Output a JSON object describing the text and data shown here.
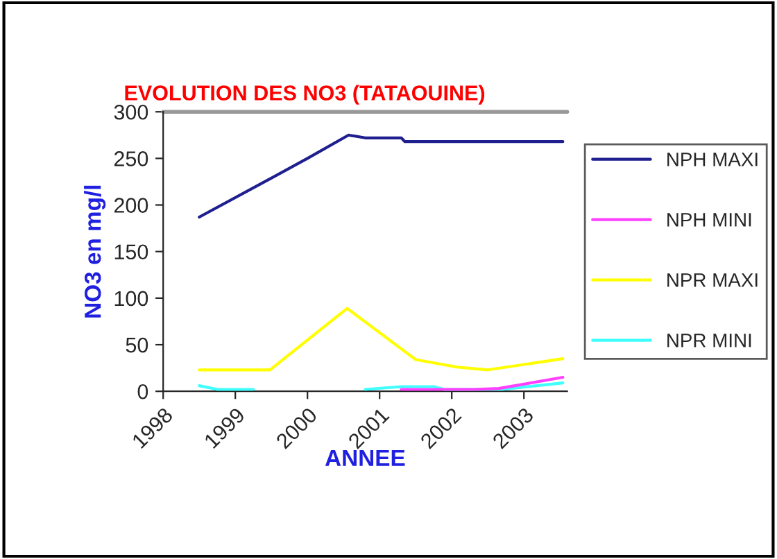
{
  "chart_data": {
    "type": "line",
    "title": "EVOLUTION DES NO3 (TATAOUINE)",
    "xlabel": "ANNEE",
    "ylabel": "NO3 en mg/l",
    "xlim": [
      1998,
      2003.6
    ],
    "xticks": [
      1998,
      1999,
      2000,
      2001,
      2002,
      2003
    ],
    "ylim": [
      0,
      300
    ],
    "yticks": [
      0,
      50,
      100,
      150,
      200,
      250,
      300
    ],
    "grid": false,
    "legend": "right",
    "marker": "none",
    "line_style": "solid",
    "series": [
      {
        "name": "NPH MAXI",
        "color": "#1f1f8f",
        "x": [
          1998.5,
          1999.48,
          2000.0,
          2000.57,
          2000.8,
          2001.3,
          2001.35,
          2003.54
        ],
        "values": [
          187,
          228,
          250,
          275,
          272,
          272,
          268,
          268
        ]
      },
      {
        "name": "NPH MINI",
        "color": "#ff40ff",
        "x": [
          2001.3,
          2001.75,
          2002.3,
          2002.65,
          2003.54
        ],
        "values": [
          2,
          2,
          2,
          3,
          15
        ]
      },
      {
        "name": "NPR MAXI",
        "color": "#ffff00",
        "x": [
          1998.5,
          1999.48,
          2000.55,
          2001.5,
          2002.07,
          2002.5,
          2003.54
        ],
        "values": [
          23,
          23,
          89,
          34,
          26,
          23,
          35
        ]
      },
      {
        "name": "NPR MINI",
        "color": "#40ffff",
        "x": [
          1998.5,
          1998.75,
          1999.25,
          1999.9,
          2000.8,
          2001.3,
          2001.75,
          2001.9,
          2002.7,
          2003.54
        ],
        "values": [
          6,
          2,
          2,
          null,
          2,
          5,
          5,
          2,
          2,
          9
        ]
      }
    ]
  }
}
